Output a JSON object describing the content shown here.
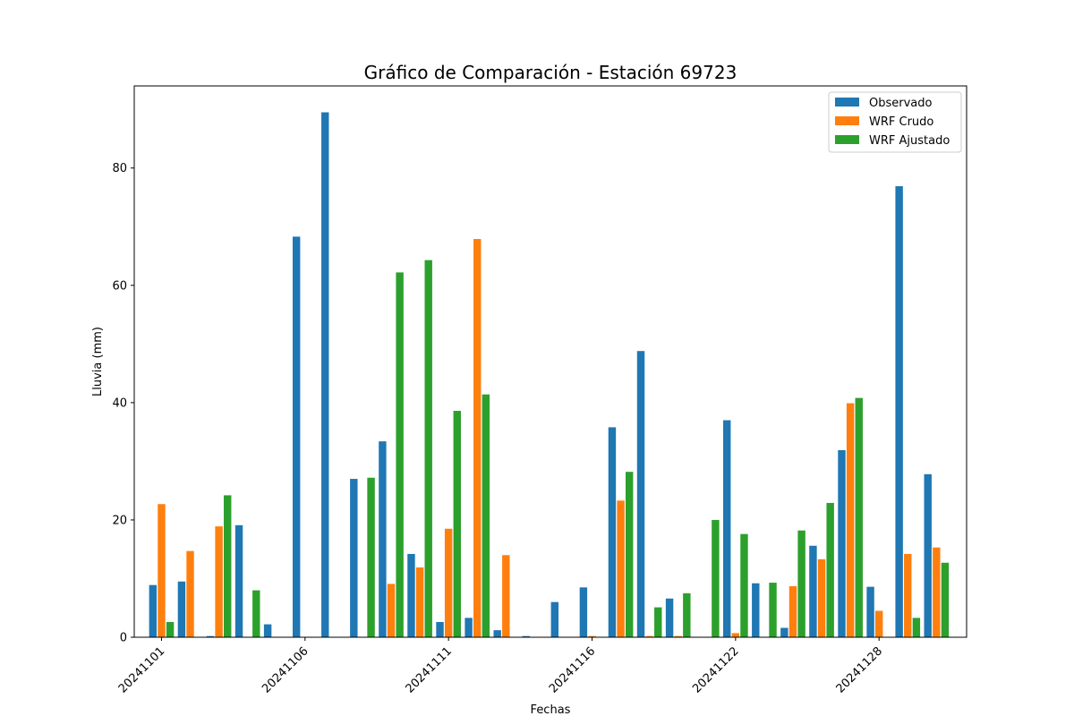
{
  "chart_data": {
    "type": "bar",
    "title": "Gráfico de Comparación - Estación 69723",
    "xlabel": "Fechas",
    "ylabel": "Lluvia (mm)",
    "ylim": [
      0,
      94
    ],
    "yticks": [
      0,
      20,
      40,
      60,
      80
    ],
    "x_tick_labels": [
      "20241101",
      "20241106",
      "20241111",
      "20241116",
      "20241122",
      "20241128"
    ],
    "x_tick_positions": [
      0,
      5,
      10,
      15,
      20,
      25
    ],
    "grid": false,
    "legend_position": "top-right",
    "colors": {
      "Observado": "#1f77b4",
      "WRF Crudo": "#ff7f0e",
      "WRF Ajustado": "#2ca02c"
    },
    "categories": [
      "0",
      "1",
      "2",
      "3",
      "4",
      "5",
      "6",
      "7",
      "8",
      "9",
      "10",
      "11",
      "12",
      "13",
      "14",
      "15",
      "16",
      "17",
      "18",
      "19",
      "20",
      "21",
      "22",
      "23",
      "24",
      "25",
      "26",
      "27"
    ],
    "series": [
      {
        "name": "Observado",
        "values": [
          8.9,
          9.5,
          0.2,
          19.1,
          2.2,
          68.3,
          89.5,
          27.0,
          33.4,
          14.2,
          2.6,
          3.3,
          1.2,
          0.2,
          6.0,
          8.5,
          35.8,
          48.8,
          6.6,
          0,
          37.0,
          9.2,
          1.6,
          15.6,
          31.9,
          8.6,
          76.9,
          27.8
        ]
      },
      {
        "name": "WRF Crudo",
        "values": [
          22.7,
          14.7,
          18.9,
          0,
          0,
          0,
          0,
          0,
          9.1,
          11.9,
          18.5,
          67.9,
          14.0,
          0,
          0,
          0.2,
          23.3,
          0.2,
          0.2,
          0,
          0.7,
          0,
          8.7,
          13.3,
          39.9,
          4.5,
          14.2,
          15.3
        ]
      },
      {
        "name": "WRF Ajustado",
        "values": [
          2.6,
          0,
          24.2,
          8.0,
          0,
          0,
          0,
          27.2,
          62.2,
          64.3,
          38.6,
          41.4,
          0,
          0,
          0,
          0,
          28.2,
          5.1,
          7.5,
          20.0,
          17.6,
          9.3,
          18.2,
          22.9,
          40.8,
          0,
          3.3,
          12.7
        ]
      }
    ]
  }
}
